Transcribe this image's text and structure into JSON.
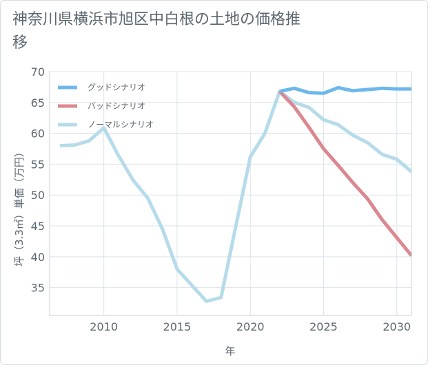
{
  "chart_data": {
    "type": "line",
    "title": "神奈川県横浜市旭区中白根の土地の価格推移",
    "xlabel": "年",
    "ylabel": "坪（3.3㎡）単価（万円）",
    "xlim": [
      2006.3,
      2031
    ],
    "ylim": [
      30.5,
      70
    ],
    "xticks": [
      2010,
      2015,
      2020,
      2025,
      2030
    ],
    "yticks": [
      35,
      40,
      45,
      50,
      55,
      60,
      65,
      70
    ],
    "grid": true,
    "legend_position": "top-left",
    "series": [
      {
        "name": "グッドシナリオ",
        "color": "#6cb8ec",
        "points": [
          [
            2022,
            66.8
          ],
          [
            2023,
            67.3
          ],
          [
            2024,
            66.6
          ],
          [
            2025,
            66.5
          ],
          [
            2026,
            67.4
          ],
          [
            2027,
            66.9
          ],
          [
            2028,
            67.1
          ],
          [
            2029,
            67.3
          ],
          [
            2030,
            67.2
          ],
          [
            2031,
            67.2
          ]
        ]
      },
      {
        "name": "バッドシナリオ",
        "color": "#dc8790",
        "points": [
          [
            2022,
            66.8
          ],
          [
            2023,
            64.3
          ],
          [
            2024,
            61.0
          ],
          [
            2025,
            57.5
          ],
          [
            2026,
            54.8
          ],
          [
            2027,
            52.0
          ],
          [
            2028,
            49.4
          ],
          [
            2029,
            46.0
          ],
          [
            2030,
            43.1
          ],
          [
            2031,
            40.2
          ]
        ]
      },
      {
        "name": "ノーマルシナリオ",
        "color": "#b6dbea",
        "points": [
          [
            2007,
            58.0
          ],
          [
            2008,
            58.1
          ],
          [
            2009,
            58.8
          ],
          [
            2010,
            60.9
          ],
          [
            2011,
            56.4
          ],
          [
            2012,
            52.4
          ],
          [
            2013,
            49.5
          ],
          [
            2014,
            44.5
          ],
          [
            2015,
            38.0
          ],
          [
            2016,
            35.4
          ],
          [
            2017,
            32.8
          ],
          [
            2018,
            33.4
          ],
          [
            2019,
            44.8
          ],
          [
            2020,
            56.2
          ],
          [
            2021,
            60.0
          ],
          [
            2022,
            66.8
          ],
          [
            2023,
            65.0
          ],
          [
            2024,
            64.2
          ],
          [
            2025,
            62.2
          ],
          [
            2026,
            61.4
          ],
          [
            2027,
            59.7
          ],
          [
            2028,
            58.5
          ],
          [
            2029,
            56.6
          ],
          [
            2030,
            55.8
          ],
          [
            2031,
            53.8
          ]
        ]
      }
    ]
  }
}
